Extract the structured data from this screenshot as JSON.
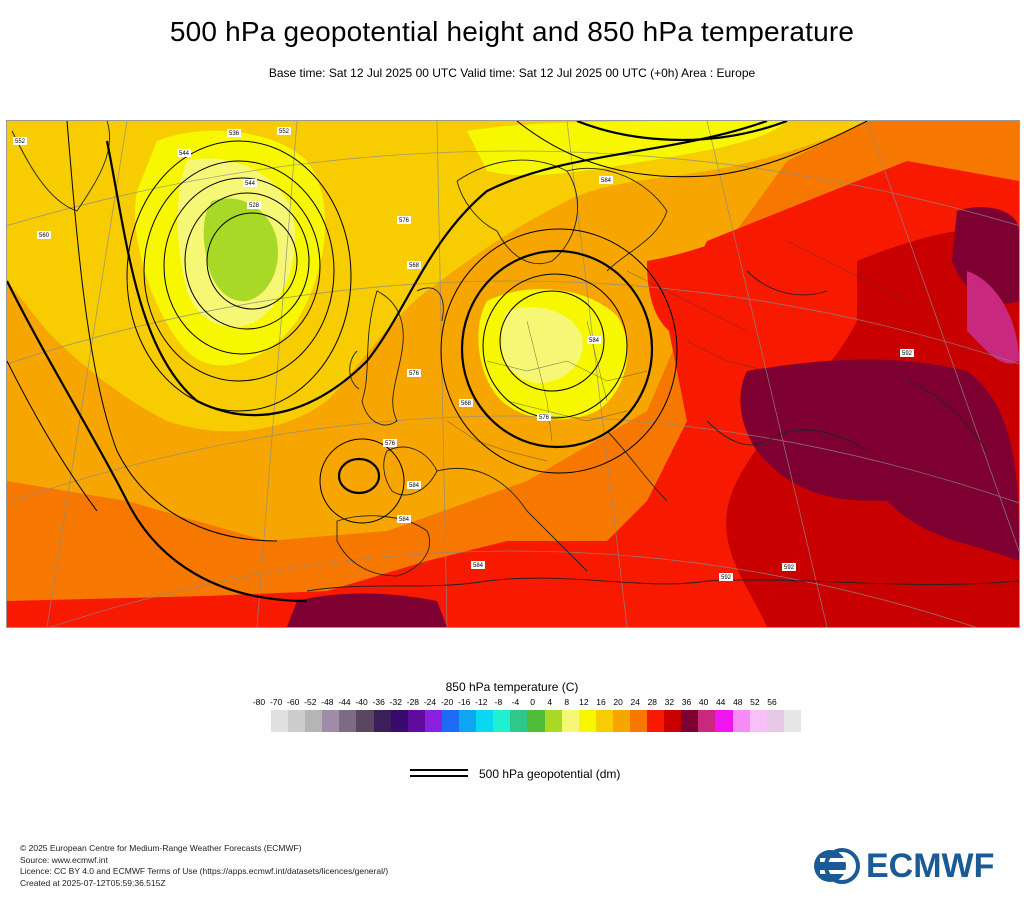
{
  "title": "500 hPa geopotential height and 850 hPa temperature",
  "subtitle": "Base time: Sat 12 Jul 2025 00 UTC Valid time: Sat 12 Jul 2025 00 UTC (+0h) Area : Europe",
  "map": {
    "contour_labels": [
      "552",
      "552",
      "544",
      "528",
      "536",
      "544",
      "584",
      "576",
      "560",
      "568",
      "584",
      "576",
      "568",
      "576",
      "576",
      "584",
      "584",
      "584",
      "592",
      "592",
      "592"
    ]
  },
  "colorbar": {
    "title": "850 hPa temperature (C)",
    "ticks": [
      "-80",
      "-70",
      "-60",
      "-52",
      "-48",
      "-44",
      "-40",
      "-36",
      "-32",
      "-28",
      "-24",
      "-20",
      "-16",
      "-12",
      "-8",
      "-4",
      "0",
      "4",
      "8",
      "12",
      "16",
      "20",
      "24",
      "28",
      "32",
      "36",
      "40",
      "44",
      "48",
      "52",
      "56"
    ],
    "colors": [
      "#e0e0e0",
      "#cdcdcd",
      "#b5b5b5",
      "#a08ca8",
      "#7d6a85",
      "#5a4660",
      "#3c1f5a",
      "#3b0a6e",
      "#5e0b9e",
      "#8a1fe0",
      "#1e6cf5",
      "#0fa5f5",
      "#0ad8f0",
      "#1ef0d2",
      "#2ec98a",
      "#4fbd3a",
      "#a8d926",
      "#f7f776",
      "#f7f700",
      "#f7cc00",
      "#f7a500",
      "#f77800",
      "#f71900",
      "#c80000",
      "#7d0031",
      "#c8287d",
      "#f014f0",
      "#f78cf7",
      "#f7c0f7",
      "#e6c8e6",
      "#e6e6e6"
    ]
  },
  "legend": {
    "line_label": "500 hPa geopotential (dm)"
  },
  "footer": {
    "line1": "© 2025 European Centre for Medium-Range Weather Forecasts (ECMWF)",
    "line2": "Source: www.ecmwf.int",
    "line3": "Licence: CC BY 4.0 and ECMWF Terms of Use (https://apps.ecmwf.int/datasets/licences/general/)",
    "line4": "Created at 2025-07-12T05:59:36.515Z"
  },
  "logo": {
    "text": "ECMWF",
    "brand_color": "#1a5a96"
  }
}
